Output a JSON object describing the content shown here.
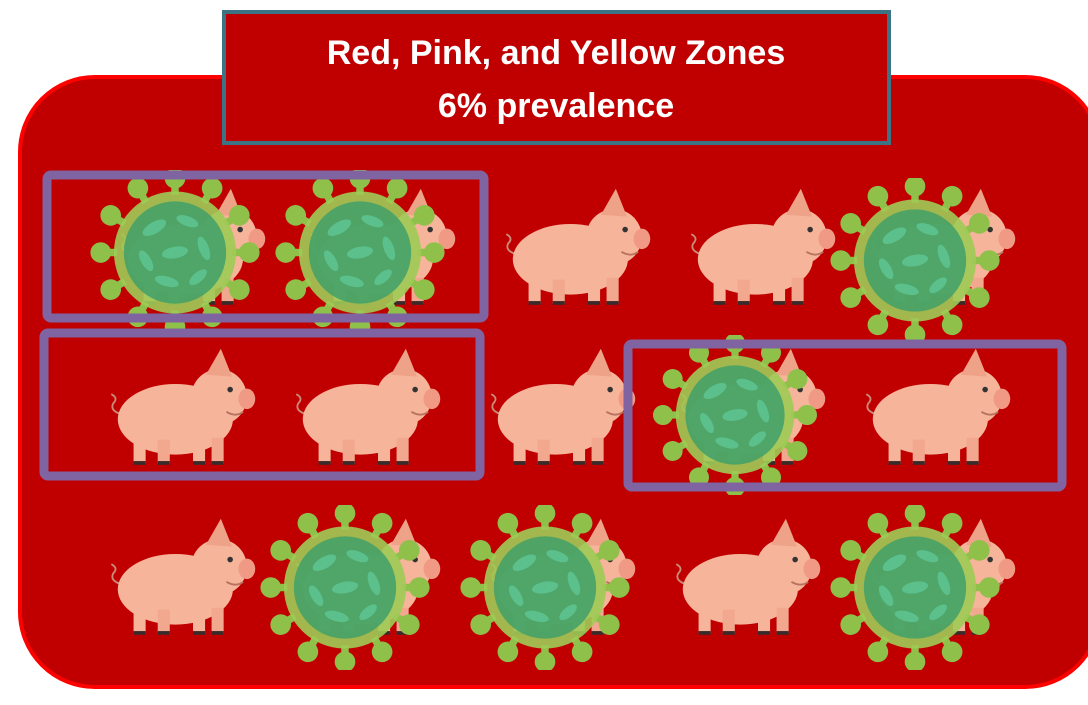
{
  "title": {
    "line1": "Red, Pink, and Yellow Zones",
    "line2": "6% prevalence"
  }
}
